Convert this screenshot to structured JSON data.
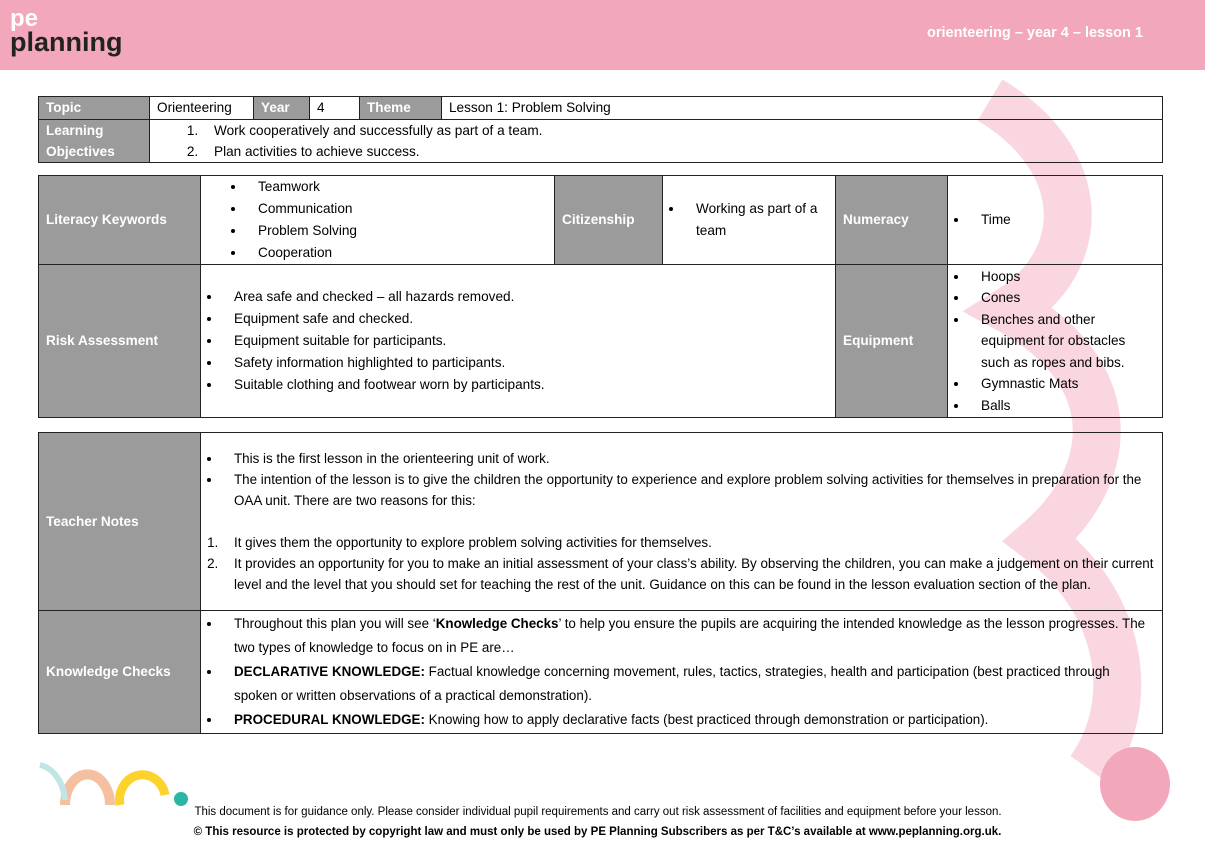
{
  "header": {
    "logo_top": "pe",
    "logo_bottom": "planning",
    "title": "orienteering – year 4 – lesson 1"
  },
  "overview": {
    "topic_label": "Topic",
    "topic": "Orienteering",
    "year_label": "Year",
    "year": "4",
    "theme_label": "Theme",
    "theme": "Lesson 1: Problem Solving",
    "objectives_label": "Learning Objectives",
    "objectives": [
      "Work cooperatively and successfully as part of a team.",
      "Plan activities to achieve success."
    ]
  },
  "details": {
    "literacy_label": "Literacy Keywords",
    "literacy": [
      "Teamwork",
      "Communication",
      "Problem Solving",
      "Cooperation"
    ],
    "citizenship_label": "Citizenship",
    "citizenship": [
      "Working as part of a team"
    ],
    "numeracy_label": "Numeracy",
    "numeracy": [
      "Time"
    ],
    "risk_label": "Risk Assessment",
    "risk": [
      "Area safe and checked – all hazards removed.",
      "Equipment safe and checked.",
      "Equipment suitable for participants.",
      "Safety information highlighted to participants.",
      "Suitable clothing and footwear worn by participants."
    ],
    "equipment_label": "Equipment",
    "equipment": [
      "Hoops",
      "Cones",
      "Benches and other equipment for obstacles such as ropes and bibs.",
      "Gymnastic Mats",
      "Balls"
    ]
  },
  "notes": {
    "teacher_label": "Teacher Notes",
    "teacher_bullets": [
      "This is the first lesson in the orienteering unit of work.",
      "The intention of the lesson is to give the children the opportunity to experience and explore problem solving activities for themselves in preparation for the OAA unit. There are two reasons for this:"
    ],
    "teacher_numbered": [
      "It gives them the opportunity to explore problem solving activities for themselves.",
      "It provides an opportunity for you to make an initial assessment of your class’s ability. By observing the children, you can make a judgement on their current level and the level that you should set for teaching the rest of the unit. Guidance on this can be found in the lesson evaluation section of the plan."
    ],
    "knowledge_label": "Knowledge Checks",
    "k1_pre": "Throughout this plan you will see ‘",
    "k1_bold": "Knowledge Checks",
    "k1_post": "’ to help you ensure the pupils are acquiring the intended knowledge as the lesson progresses.  The two types of knowledge to focus on in PE are…",
    "k2_bold": "DECLARATIVE KNOWLEDGE:",
    "k2_post": "  Factual knowledge concerning movement, rules, tactics, strategies, health and participation (best practiced through spoken or written observations of a practical demonstration).",
    "k3_bold": "PROCEDURAL KNOWLEDGE:",
    "k3_post": " Knowing how to apply declarative facts (best practiced through demonstration or participation)."
  },
  "footer": {
    "disclaimer": "This document is for guidance only.  Please consider individual pupil requirements and carry out risk assessment of facilities and equipment before your lesson.",
    "copyright": "© This resource is protected by copyright law and must only be used by PE Planning Subscribers as per T&C’s available at www.peplanning.org.uk."
  },
  "colors": {
    "header": "#f3a7bb",
    "label_cell": "#9b9b9b"
  }
}
